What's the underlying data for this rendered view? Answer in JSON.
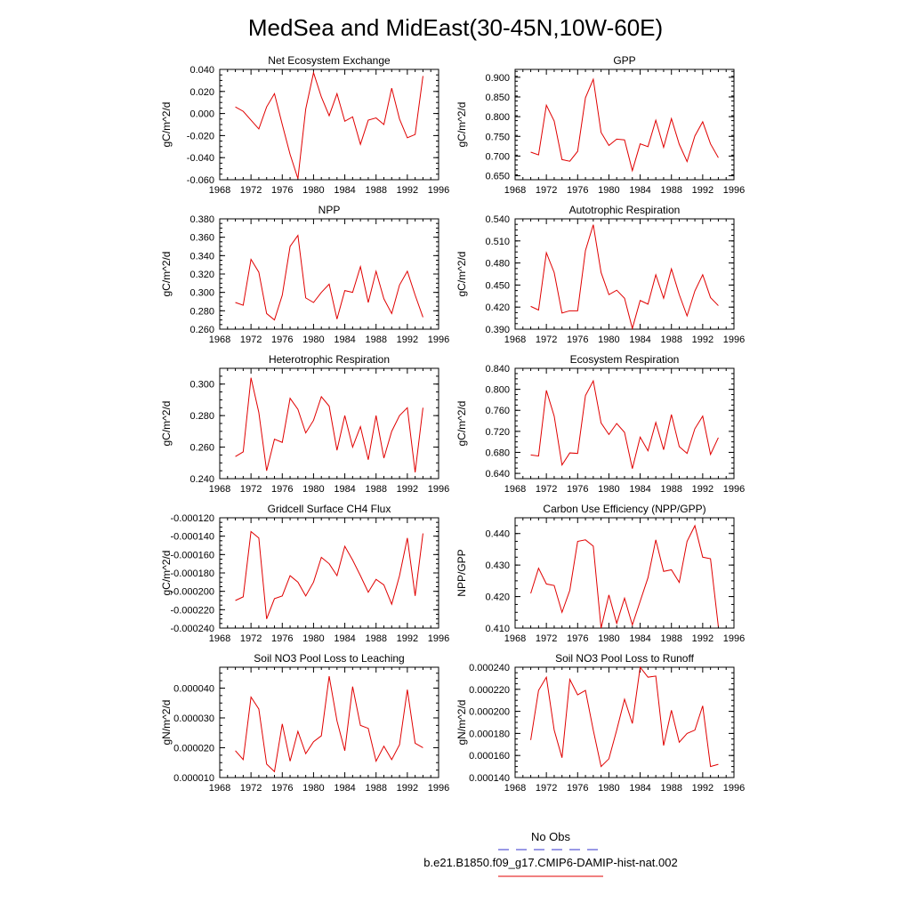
{
  "title": "MedSea and MidEast(30-45N,10W-60E)",
  "legend": {
    "obs_label": "No Obs",
    "model_label": "b.e21.B1850.f09_g17.CMIP6-DAMIP-hist-nat.002",
    "obs_color": "#3333cc",
    "model_color": "#e00000"
  },
  "chart_data": [
    {
      "type": "line",
      "title": "Net Ecosystem Exchange",
      "ylabel": "gC/m^2/d",
      "xlim": [
        1968,
        1996
      ],
      "ylim": [
        -0.06,
        0.04
      ],
      "xticks": [
        "1968",
        "1972",
        "1976",
        "1980",
        "1984",
        "1988",
        "1992",
        "1996"
      ],
      "yticks": [
        "-0.060",
        "-0.040",
        "-0.020",
        "0.000",
        "0.020",
        "0.040"
      ],
      "x": [
        1970,
        1971,
        1972,
        1973,
        1974,
        1975,
        1976,
        1977,
        1978,
        1979,
        1980,
        1981,
        1982,
        1983,
        1984,
        1985,
        1986,
        1987,
        1988,
        1989,
        1990,
        1991,
        1992,
        1993,
        1994
      ],
      "series": [
        {
          "values": [
            0.006,
            0.002,
            -0.006,
            -0.014,
            0.006,
            0.018,
            -0.01,
            -0.037,
            -0.059,
            0.004,
            0.037,
            0.015,
            -0.002,
            0.018,
            -0.007,
            -0.003,
            -0.028,
            -0.006,
            -0.004,
            -0.01,
            0.023,
            -0.005,
            -0.022,
            -0.019,
            0.034
          ]
        }
      ]
    },
    {
      "type": "line",
      "title": "GPP",
      "ylabel": "gC/m^2/d",
      "xlim": [
        1968,
        1996
      ],
      "ylim": [
        0.64,
        0.92
      ],
      "xticks": [
        "1968",
        "1972",
        "1976",
        "1980",
        "1984",
        "1988",
        "1992",
        "1996"
      ],
      "yticks": [
        "0.650",
        "0.700",
        "0.750",
        "0.800",
        "0.850",
        "0.900"
      ],
      "x": [
        1970,
        1971,
        1972,
        1973,
        1974,
        1975,
        1976,
        1977,
        1978,
        1979,
        1980,
        1981,
        1982,
        1983,
        1984,
        1985,
        1986,
        1987,
        1988,
        1989,
        1990,
        1991,
        1992,
        1993,
        1994
      ],
      "series": [
        {
          "values": [
            0.71,
            0.703,
            0.829,
            0.789,
            0.691,
            0.687,
            0.712,
            0.848,
            0.895,
            0.76,
            0.727,
            0.743,
            0.741,
            0.663,
            0.731,
            0.724,
            0.791,
            0.722,
            0.795,
            0.73,
            0.686,
            0.751,
            0.787,
            0.731,
            0.696
          ]
        }
      ]
    },
    {
      "type": "line",
      "title": "NPP",
      "ylabel": "gC/m^2/d",
      "xlim": [
        1968,
        1996
      ],
      "ylim": [
        0.26,
        0.38
      ],
      "xticks": [
        "1968",
        "1972",
        "1976",
        "1980",
        "1984",
        "1988",
        "1992",
        "1996"
      ],
      "yticks": [
        "0.260",
        "0.280",
        "0.300",
        "0.320",
        "0.340",
        "0.360",
        "0.380"
      ],
      "x": [
        1970,
        1971,
        1972,
        1973,
        1974,
        1975,
        1976,
        1977,
        1978,
        1979,
        1980,
        1981,
        1982,
        1983,
        1984,
        1985,
        1986,
        1987,
        1988,
        1989,
        1990,
        1991,
        1992,
        1993,
        1994
      ],
      "series": [
        {
          "values": [
            0.289,
            0.286,
            0.336,
            0.322,
            0.277,
            0.27,
            0.297,
            0.35,
            0.362,
            0.294,
            0.289,
            0.3,
            0.309,
            0.271,
            0.302,
            0.3,
            0.328,
            0.289,
            0.323,
            0.293,
            0.277,
            0.308,
            0.323,
            0.297,
            0.273
          ]
        }
      ]
    },
    {
      "type": "line",
      "title": "Autotrophic Respiration",
      "ylabel": "gC/m^2/d",
      "xlim": [
        1968,
        1996
      ],
      "ylim": [
        0.39,
        0.54
      ],
      "xticks": [
        "1968",
        "1972",
        "1976",
        "1980",
        "1984",
        "1988",
        "1992",
        "1996"
      ],
      "yticks": [
        "0.390",
        "0.420",
        "0.450",
        "0.480",
        "0.510",
        "0.540"
      ],
      "x": [
        1970,
        1971,
        1972,
        1973,
        1974,
        1975,
        1976,
        1977,
        1978,
        1979,
        1980,
        1981,
        1982,
        1983,
        1984,
        1985,
        1986,
        1987,
        1988,
        1989,
        1990,
        1991,
        1992,
        1993,
        1994
      ],
      "series": [
        {
          "values": [
            0.421,
            0.416,
            0.494,
            0.467,
            0.412,
            0.415,
            0.415,
            0.497,
            0.532,
            0.467,
            0.437,
            0.443,
            0.432,
            0.391,
            0.429,
            0.424,
            0.464,
            0.432,
            0.472,
            0.437,
            0.408,
            0.442,
            0.464,
            0.433,
            0.422
          ]
        }
      ]
    },
    {
      "type": "line",
      "title": "Heterotrophic Respiration",
      "ylabel": "gC/m^2/d",
      "xlim": [
        1968,
        1996
      ],
      "ylim": [
        0.24,
        0.31
      ],
      "xticks": [
        "1968",
        "1972",
        "1976",
        "1980",
        "1984",
        "1988",
        "1992",
        "1996"
      ],
      "yticks": [
        "0.240",
        "0.260",
        "0.280",
        "0.300"
      ],
      "x": [
        1970,
        1971,
        1972,
        1973,
        1974,
        1975,
        1976,
        1977,
        1978,
        1979,
        1980,
        1981,
        1982,
        1983,
        1984,
        1985,
        1986,
        1987,
        1988,
        1989,
        1990,
        1991,
        1992,
        1993,
        1994
      ],
      "series": [
        {
          "values": [
            0.254,
            0.257,
            0.304,
            0.282,
            0.245,
            0.265,
            0.263,
            0.291,
            0.284,
            0.269,
            0.277,
            0.292,
            0.286,
            0.258,
            0.28,
            0.26,
            0.273,
            0.252,
            0.28,
            0.253,
            0.27,
            0.28,
            0.285,
            0.244,
            0.285
          ]
        }
      ]
    },
    {
      "type": "line",
      "title": "Ecosystem Respiration",
      "ylabel": "gC/m^2/d",
      "xlim": [
        1968,
        1996
      ],
      "ylim": [
        0.63,
        0.84
      ],
      "xticks": [
        "1968",
        "1972",
        "1976",
        "1980",
        "1984",
        "1988",
        "1992",
        "1996"
      ],
      "yticks": [
        "0.640",
        "0.680",
        "0.720",
        "0.760",
        "0.800",
        "0.840"
      ],
      "x": [
        1970,
        1971,
        1972,
        1973,
        1974,
        1975,
        1976,
        1977,
        1978,
        1979,
        1980,
        1981,
        1982,
        1983,
        1984,
        1985,
        1986,
        1987,
        1988,
        1989,
        1990,
        1991,
        1992,
        1993,
        1994
      ],
      "series": [
        {
          "values": [
            0.675,
            0.673,
            0.798,
            0.749,
            0.656,
            0.679,
            0.678,
            0.788,
            0.816,
            0.736,
            0.714,
            0.735,
            0.718,
            0.649,
            0.709,
            0.683,
            0.737,
            0.685,
            0.752,
            0.691,
            0.678,
            0.725,
            0.749,
            0.676,
            0.708
          ]
        }
      ]
    },
    {
      "type": "line",
      "title": "Gridcell Surface CH4 Flux",
      "ylabel": "gC/m^2/d",
      "xlim": [
        1968,
        1996
      ],
      "ylim": [
        -0.00024,
        -0.00012
      ],
      "xticks": [
        "1968",
        "1972",
        "1976",
        "1980",
        "1984",
        "1988",
        "1992",
        "1996"
      ],
      "yticks": [
        "-0.000240",
        "-0.000220",
        "-0.000200",
        "-0.000180",
        "-0.000160",
        "-0.000140",
        "-0.000120"
      ],
      "x": [
        1970,
        1971,
        1972,
        1973,
        1974,
        1975,
        1976,
        1977,
        1978,
        1979,
        1980,
        1981,
        1982,
        1983,
        1984,
        1985,
        1986,
        1987,
        1988,
        1989,
        1990,
        1991,
        1992,
        1993,
        1994
      ],
      "series": [
        {
          "values": [
            -0.00021,
            -0.000206,
            -0.000135,
            -0.000142,
            -0.00023,
            -0.000208,
            -0.000205,
            -0.000183,
            -0.00019,
            -0.000205,
            -0.00019,
            -0.000163,
            -0.00017,
            -0.000183,
            -0.000151,
            -0.000166,
            -0.000183,
            -0.000201,
            -0.000187,
            -0.000193,
            -0.000214,
            -0.000183,
            -0.000142,
            -0.000205,
            -0.000137
          ]
        }
      ]
    },
    {
      "type": "line",
      "title": "Carbon Use Efficiency (NPP/GPP)",
      "ylabel": "NPP/GPP",
      "xlim": [
        1968,
        1996
      ],
      "ylim": [
        0.41,
        0.445
      ],
      "xticks": [
        "1968",
        "1972",
        "1976",
        "1980",
        "1984",
        "1988",
        "1992",
        "1996"
      ],
      "yticks": [
        "0.410",
        "0.420",
        "0.430",
        "0.440"
      ],
      "x": [
        1970,
        1971,
        1972,
        1973,
        1974,
        1975,
        1976,
        1977,
        1978,
        1979,
        1980,
        1981,
        1982,
        1983,
        1984,
        1985,
        1986,
        1987,
        1988,
        1989,
        1990,
        1991,
        1992,
        1993,
        1994
      ],
      "series": [
        {
          "values": [
            0.421,
            0.429,
            0.424,
            0.4235,
            0.415,
            0.422,
            0.4375,
            0.438,
            0.436,
            0.41,
            0.4205,
            0.4115,
            0.4195,
            0.411,
            0.4185,
            0.426,
            0.438,
            0.428,
            0.4285,
            0.4245,
            0.4375,
            0.4425,
            0.4325,
            0.432,
            0.4105
          ]
        }
      ]
    },
    {
      "type": "line",
      "title": "Soil NO3 Pool Loss to Leaching",
      "ylabel": "gN/m^2/d",
      "xlim": [
        1968,
        1996
      ],
      "ylim": [
        1e-05,
        4.7e-05
      ],
      "xticks": [
        "1968",
        "1972",
        "1976",
        "1980",
        "1984",
        "1988",
        "1992",
        "1996"
      ],
      "yticks": [
        "0.000010",
        "0.000020",
        "0.000030",
        "0.000040"
      ],
      "x": [
        1970,
        1971,
        1972,
        1973,
        1974,
        1975,
        1976,
        1977,
        1978,
        1979,
        1980,
        1981,
        1982,
        1983,
        1984,
        1985,
        1986,
        1987,
        1988,
        1989,
        1990,
        1991,
        1992,
        1993,
        1994
      ],
      "series": [
        {
          "values": [
            1.9e-05,
            1.6e-05,
            3.7e-05,
            3.3e-05,
            1.45e-05,
            1.2e-05,
            2.8e-05,
            1.55e-05,
            2.55e-05,
            1.8e-05,
            2.2e-05,
            2.4e-05,
            4.4e-05,
            2.9e-05,
            1.9e-05,
            4.05e-05,
            2.75e-05,
            2.65e-05,
            1.55e-05,
            2.05e-05,
            1.6e-05,
            2.1e-05,
            3.95e-05,
            2.15e-05,
            2e-05
          ]
        }
      ]
    },
    {
      "type": "line",
      "title": "Soil NO3 Pool Loss to Runoff",
      "ylabel": "gN/m^2/d",
      "xlim": [
        1968,
        1996
      ],
      "ylim": [
        0.00014,
        0.00024
      ],
      "xticks": [
        "1968",
        "1972",
        "1976",
        "1980",
        "1984",
        "1988",
        "1992",
        "1996"
      ],
      "yticks": [
        "0.000140",
        "0.000160",
        "0.000180",
        "0.000200",
        "0.000220",
        "0.000240"
      ],
      "x": [
        1970,
        1971,
        1972,
        1973,
        1974,
        1975,
        1976,
        1977,
        1978,
        1979,
        1980,
        1981,
        1982,
        1983,
        1984,
        1985,
        1986,
        1987,
        1988,
        1989,
        1990,
        1991,
        1992,
        1993,
        1994
      ],
      "series": [
        {
          "values": [
            0.000174,
            0.000219,
            0.000231,
            0.000183,
            0.000158,
            0.000229,
            0.000215,
            0.000219,
            0.000183,
            0.00015,
            0.000157,
            0.000183,
            0.000211,
            0.000189,
            0.00024,
            0.000231,
            0.000232,
            0.000169,
            0.000201,
            0.000172,
            0.00018,
            0.000183,
            0.000205,
            0.00015,
            0.000152
          ]
        }
      ]
    }
  ]
}
